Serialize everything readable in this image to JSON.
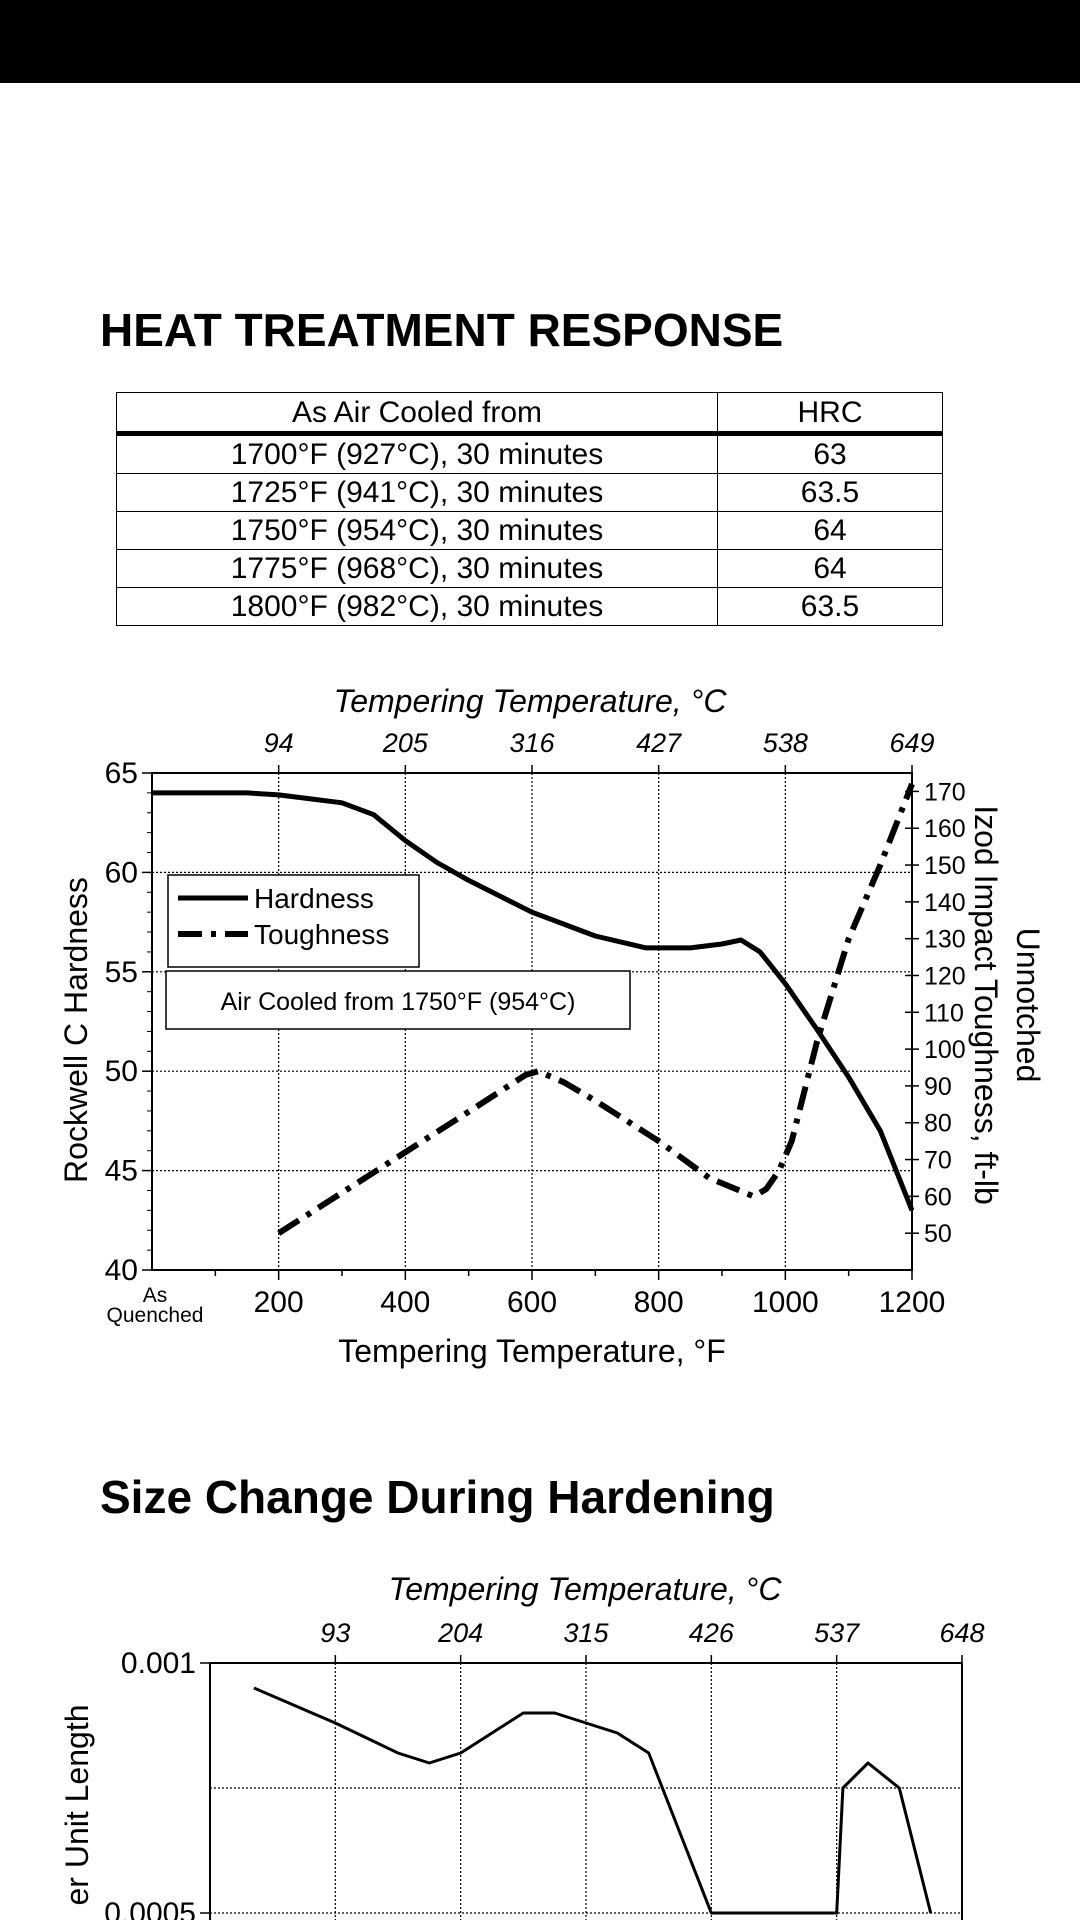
{
  "section1": {
    "title": "HEAT TREATMENT RESPONSE"
  },
  "table": {
    "headers": [
      "As Air Cooled from",
      "HRC"
    ],
    "rows": [
      {
        "condition": "1700°F  (927°C),   30 minutes",
        "hrc": "63"
      },
      {
        "condition": "1725°F  (941°C),   30 minutes",
        "hrc": "63.5"
      },
      {
        "condition": "1750°F  (954°C),  30 minutes",
        "hrc": "64"
      },
      {
        "condition": "1775°F  (968°C),  30 minutes",
        "hrc": "64"
      },
      {
        "condition": "1800°F  (982°C),  30 minutes",
        "hrc": "63.5"
      }
    ]
  },
  "section2": {
    "title": "Size Change During Hardening"
  },
  "chart_data": [
    {
      "type": "line",
      "title": "",
      "top_axis_label": "Tempering Temperature, °C",
      "top_ticks": [
        "94",
        "205",
        "316",
        "427",
        "538",
        "649"
      ],
      "xlabel": "Tempering Temperature, °F",
      "x_ticks": [
        "200",
        "400",
        "600",
        "800",
        "1000",
        "1200"
      ],
      "x_as_quenched": [
        "As",
        "Quenched"
      ],
      "xlim": [
        0,
        1200
      ],
      "ylabel": "Rockwell C Hardness",
      "ylim": [
        40,
        65
      ],
      "y_ticks": [
        "40",
        "45",
        "50",
        "55",
        "60",
        "65"
      ],
      "y2label_line1": "Unnotched",
      "y2label_line2": "Izod Impact Toughness, ft-lb",
      "y2lim": [
        40,
        175
      ],
      "y2_ticks": [
        "50",
        "60",
        "70",
        "80",
        "90",
        "100",
        "110",
        "120",
        "130",
        "140",
        "150",
        "160",
        "170"
      ],
      "grid": true,
      "legend_position": "upper-left",
      "annotation": "Air Cooled from 1750°F (954°C)",
      "series": [
        {
          "name": "Hardness",
          "axis": "left",
          "style": "solid",
          "points": [
            [
              0,
              64
            ],
            [
              150,
              64
            ],
            [
              200,
              63.9
            ],
            [
              300,
              63.5
            ],
            [
              350,
              62.9
            ],
            [
              400,
              61.6
            ],
            [
              450,
              60.5
            ],
            [
              500,
              59.6
            ],
            [
              600,
              58.0
            ],
            [
              700,
              56.8
            ],
            [
              780,
              56.2
            ],
            [
              850,
              56.2
            ],
            [
              900,
              56.4
            ],
            [
              930,
              56.6
            ],
            [
              960,
              56.0
            ],
            [
              1000,
              54.4
            ],
            [
              1050,
              52.1
            ],
            [
              1100,
              49.7
            ],
            [
              1150,
              47.0
            ],
            [
              1200,
              43.0
            ]
          ]
        },
        {
          "name": "Toughness",
          "axis": "right",
          "style": "dash-dot",
          "points": [
            [
              200,
              50
            ],
            [
              300,
              61
            ],
            [
              400,
              72
            ],
            [
              500,
              83
            ],
            [
              590,
              93
            ],
            [
              610,
              94
            ],
            [
              650,
              91
            ],
            [
              700,
              86
            ],
            [
              800,
              75
            ],
            [
              880,
              65
            ],
            [
              950,
              60
            ],
            [
              970,
              62
            ],
            [
              990,
              67
            ],
            [
              1010,
              75
            ],
            [
              1050,
              102
            ],
            [
              1100,
              130
            ],
            [
              1150,
              150
            ],
            [
              1200,
              172
            ]
          ]
        }
      ]
    },
    {
      "type": "line",
      "title": "",
      "top_axis_label": "Tempering Temperature, °C",
      "top_ticks": [
        "93",
        "204",
        "315",
        "426",
        "537",
        "648"
      ],
      "ylabel": "er Unit Length",
      "y_ticks": [
        "0.001",
        "0.0005"
      ],
      "ylim": [
        0.0005,
        0.001
      ],
      "xlim": [
        0,
        1200
      ],
      "grid": true,
      "series": [
        {
          "name": "",
          "style": "solid",
          "points": [
            [
              70,
              0.00095
            ],
            [
              200,
              0.00088
            ],
            [
              300,
              0.00082
            ],
            [
              350,
              0.0008
            ],
            [
              400,
              0.00082
            ],
            [
              450,
              0.00086
            ],
            [
              500,
              0.0009
            ],
            [
              550,
              0.0009
            ],
            [
              650,
              0.00086
            ],
            [
              700,
              0.00082
            ],
            [
              800,
              0.0005
            ],
            [
              1000,
              0.0005
            ],
            [
              1010,
              0.00075
            ],
            [
              1050,
              0.0008
            ],
            [
              1100,
              0.00075
            ],
            [
              1150,
              0.0005
            ]
          ]
        }
      ]
    }
  ]
}
